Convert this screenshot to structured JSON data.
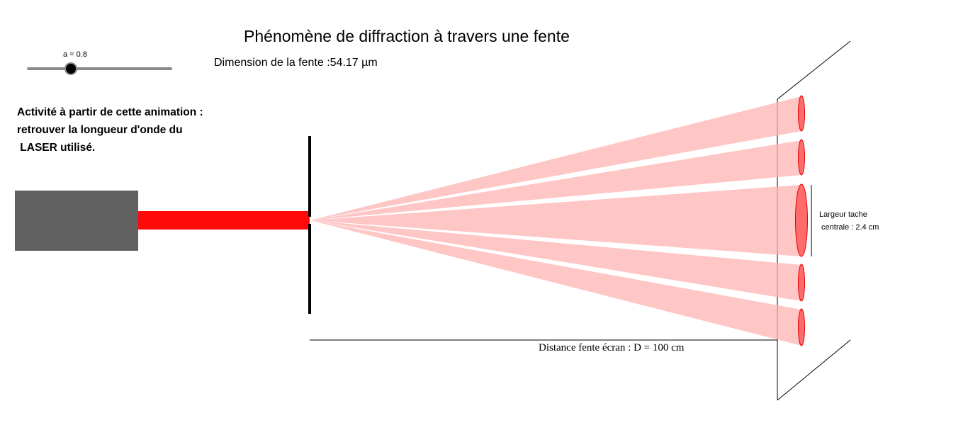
{
  "title": "Phénomène de diffraction à travers une fente",
  "slider": {
    "label": "a = 0.8",
    "value": 0.8
  },
  "slit_dimension": "Dimension de la fente :54.17 µm",
  "activity_text": "Activité à partir de cette animation :\nretrouver la longueur d'onde du\n LASER utilisé.",
  "central_spot_label": "Largeur tache\n centrale : 2.4 cm",
  "distance_label": "Distance fente écran : D = 100 cm",
  "colors": {
    "laser_body": "#606060",
    "laser_beam": "#ff0a0a",
    "diffraction_fan": "#ffb3b3",
    "spot": "#ff5a5a"
  }
}
